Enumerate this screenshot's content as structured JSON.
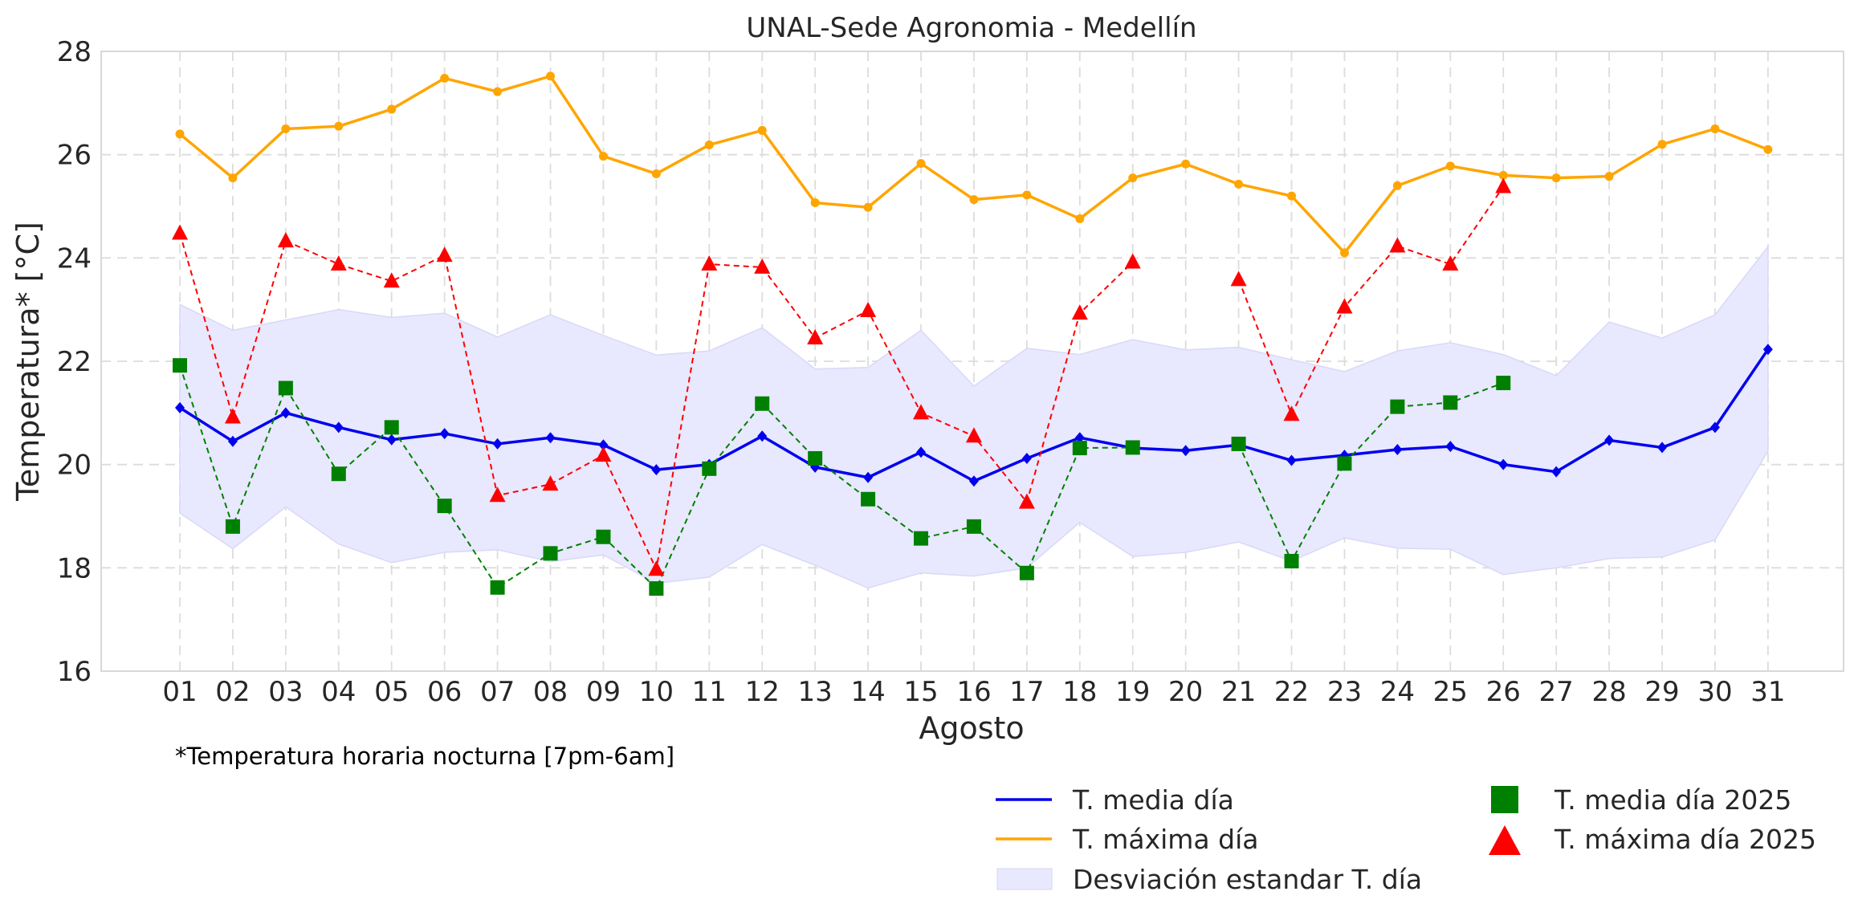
{
  "chart_data": {
    "type": "line",
    "title": "UNAL-Sede Agronomia - Medellín",
    "xlabel": "Agosto",
    "ylabel": "Temperatura* [°C]",
    "footnote": "*Temperatura horaria nocturna [7pm-6am]",
    "ylim": [
      16,
      28
    ],
    "yticks": [
      16,
      18,
      20,
      22,
      24,
      26,
      28
    ],
    "grid": true,
    "legend_placement": "bottom-right",
    "categories": [
      "01",
      "02",
      "03",
      "04",
      "05",
      "06",
      "07",
      "08",
      "09",
      "10",
      "11",
      "12",
      "13",
      "14",
      "15",
      "16",
      "17",
      "18",
      "19",
      "20",
      "21",
      "22",
      "23",
      "24",
      "25",
      "26",
      "27",
      "28",
      "29",
      "30",
      "31"
    ],
    "series": [
      {
        "name": "T. media día",
        "style": "line",
        "color": "#0000ee",
        "values": [
          21.1,
          20.45,
          21.0,
          20.72,
          20.48,
          20.6,
          20.4,
          20.52,
          20.38,
          19.9,
          20.0,
          20.55,
          19.95,
          19.75,
          20.24,
          19.68,
          20.12,
          20.52,
          20.32,
          20.27,
          20.38,
          20.08,
          20.18,
          20.29,
          20.35,
          20.0,
          19.86,
          20.47,
          20.33,
          20.72,
          22.23
        ]
      },
      {
        "name": "T. máxima día",
        "style": "line",
        "color": "#ffa500",
        "values": [
          26.4,
          25.55,
          26.5,
          26.55,
          26.88,
          27.48,
          27.22,
          27.52,
          25.97,
          25.63,
          26.19,
          26.47,
          25.07,
          24.98,
          25.83,
          25.13,
          25.22,
          24.76,
          25.55,
          25.82,
          25.43,
          25.2,
          24.1,
          25.4,
          25.78,
          25.6,
          25.55,
          25.58,
          26.2,
          26.5,
          26.1
        ]
      },
      {
        "name": "Desviación estandar T. día",
        "style": "band",
        "color": "#e8e8ff",
        "upper": [
          23.1,
          22.6,
          22.8,
          23.0,
          22.85,
          22.93,
          22.47,
          22.9,
          22.5,
          22.12,
          22.2,
          22.65,
          21.85,
          21.88,
          22.6,
          21.52,
          22.25,
          22.13,
          22.42,
          22.22,
          22.27,
          22.03,
          21.8,
          22.2,
          22.36,
          22.13,
          21.72,
          22.76,
          22.45,
          22.9,
          24.22
        ],
        "lower": [
          19.06,
          18.37,
          19.18,
          18.46,
          18.1,
          18.3,
          18.35,
          18.12,
          18.25,
          17.7,
          17.82,
          18.45,
          18.05,
          17.61,
          17.9,
          17.84,
          18.0,
          18.88,
          18.22,
          18.3,
          18.5,
          18.13,
          18.58,
          18.38,
          18.36,
          17.87,
          18.0,
          18.18,
          18.21,
          18.54,
          20.26
        ]
      },
      {
        "name": "T. media día 2025",
        "style": "dashed-markers",
        "marker": "square",
        "color": "#008000",
        "values": [
          21.92,
          18.8,
          21.48,
          19.82,
          20.72,
          19.2,
          17.62,
          18.28,
          18.6,
          17.6,
          19.92,
          21.18,
          20.12,
          19.33,
          18.57,
          18.8,
          17.9,
          20.32,
          20.33,
          null,
          20.4,
          18.13,
          20.02,
          21.12,
          21.2,
          21.58,
          null,
          null,
          null,
          null,
          null
        ]
      },
      {
        "name": "T. máxima día 2025",
        "style": "dashed-markers",
        "marker": "triangle",
        "color": "#ff0000",
        "values": [
          24.48,
          20.92,
          24.33,
          23.88,
          23.55,
          24.05,
          19.4,
          19.62,
          20.18,
          17.97,
          23.88,
          23.82,
          22.45,
          22.98,
          21.0,
          20.55,
          19.27,
          22.93,
          23.92,
          null,
          23.58,
          20.97,
          23.05,
          24.23,
          23.88,
          25.38,
          null,
          null,
          null,
          null,
          null
        ]
      }
    ]
  }
}
